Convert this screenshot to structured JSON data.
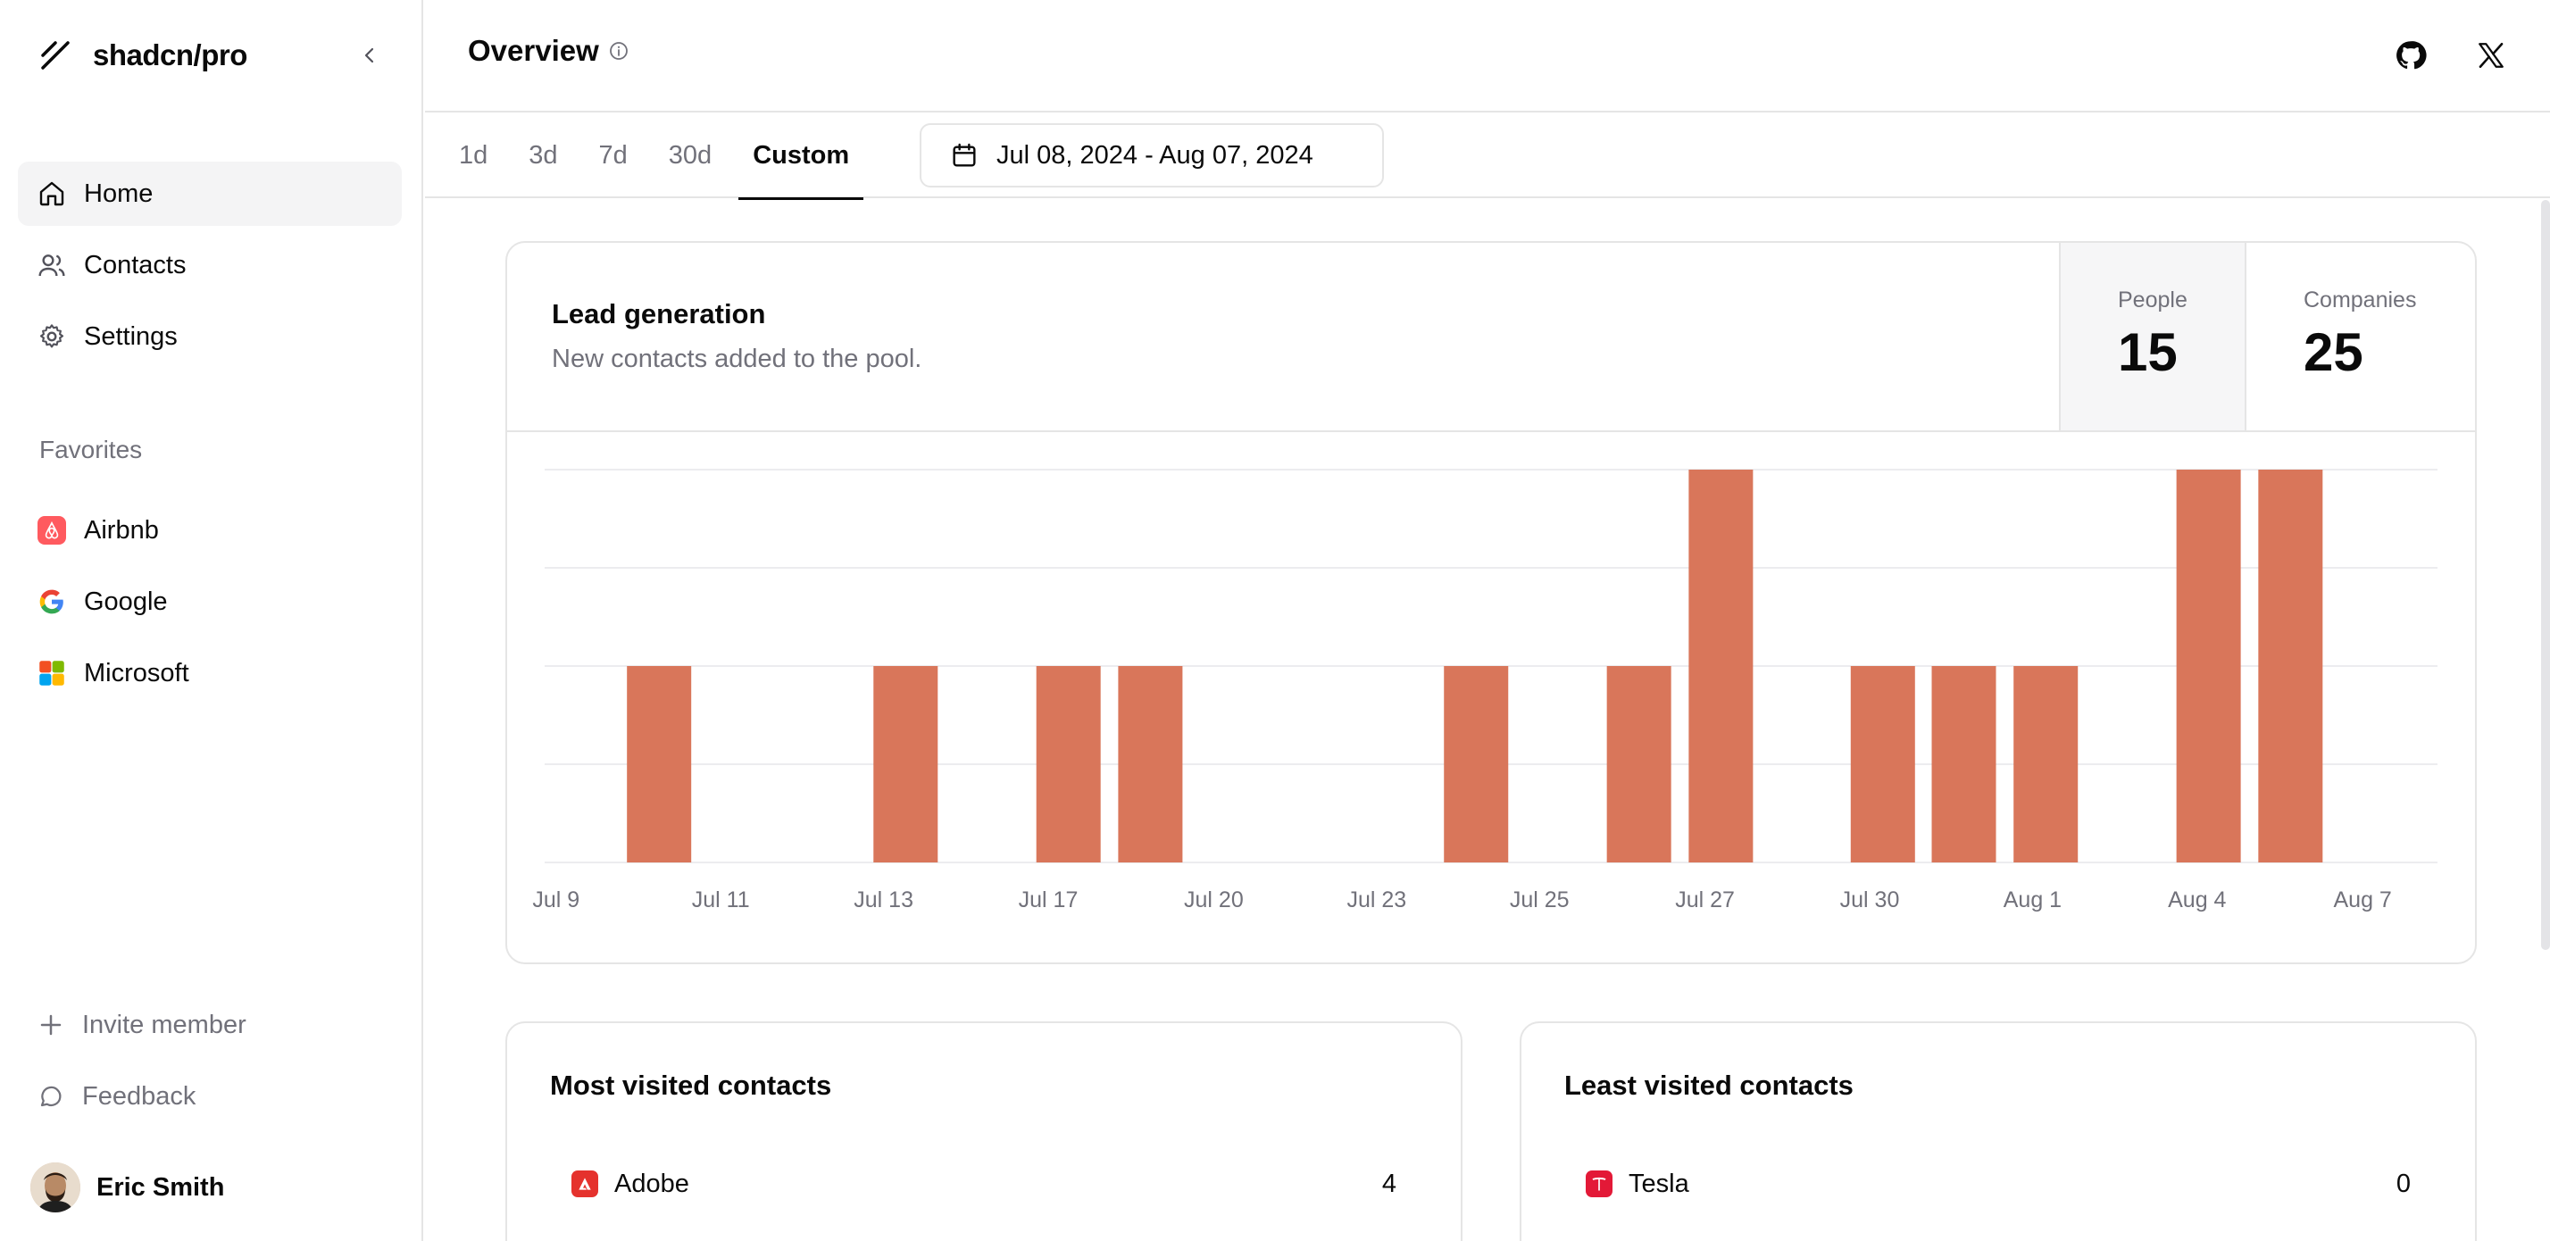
{
  "sidebar": {
    "brand": "shadcn/pro",
    "nav": [
      {
        "label": "Home",
        "icon": "home-icon",
        "active": true
      },
      {
        "label": "Contacts",
        "icon": "users-icon",
        "active": false
      },
      {
        "label": "Settings",
        "icon": "gear-icon",
        "active": false
      }
    ],
    "favorites_label": "Favorites",
    "favorites": [
      {
        "label": "Airbnb",
        "icon": "airbnb-logo"
      },
      {
        "label": "Google",
        "icon": "google-logo"
      },
      {
        "label": "Microsoft",
        "icon": "microsoft-logo"
      }
    ],
    "invite_label": "Invite member",
    "feedback_label": "Feedback",
    "user_name": "Eric Smith"
  },
  "header": {
    "title": "Overview"
  },
  "tabs": [
    {
      "label": "1d",
      "active": false
    },
    {
      "label": "3d",
      "active": false
    },
    {
      "label": "7d",
      "active": false
    },
    {
      "label": "30d",
      "active": false
    },
    {
      "label": "Custom",
      "active": true
    }
  ],
  "date_range": "Jul 08, 2024 - Aug 07, 2024",
  "lead": {
    "title": "Lead generation",
    "subtitle": "New contacts added to the pool.",
    "people_label": "People",
    "people_value": "15",
    "companies_label": "Companies",
    "companies_value": "25"
  },
  "chart_data": {
    "type": "bar",
    "title": "",
    "xlabel": "",
    "ylabel": "",
    "ylim": [
      0,
      2
    ],
    "grid": true,
    "color": "#d9765a",
    "categories": [
      "Jul 9",
      "Jul 10",
      "Jul 11",
      "Jul 12",
      "Jul 13",
      "Jul 14",
      "Jul 17",
      "Jul 18",
      "Jul 20",
      "Jul 21",
      "Jul 23",
      "Jul 24",
      "Jul 25",
      "Jul 26",
      "Jul 27",
      "Jul 28",
      "Jul 30",
      "Jul 31",
      "Aug 1",
      "Aug 2",
      "Aug 4",
      "Aug 5",
      "Aug 7"
    ],
    "values": [
      0,
      1,
      0,
      0,
      1,
      0,
      1,
      1,
      0,
      0,
      0,
      1,
      0,
      1,
      2,
      0,
      1,
      1,
      1,
      0,
      2,
      2,
      0
    ],
    "tick_labels": [
      "Jul 9",
      "Jul 11",
      "Jul 13",
      "Jul 17",
      "Jul 20",
      "Jul 23",
      "Jul 25",
      "Jul 27",
      "Jul 30",
      "Aug 1",
      "Aug 4",
      "Aug 7"
    ]
  },
  "most_visited": {
    "title": "Most visited contacts",
    "rows": [
      {
        "name": "Adobe",
        "count": "4",
        "color": "#e5322d"
      }
    ]
  },
  "least_visited": {
    "title": "Least visited contacts",
    "rows": [
      {
        "name": "Tesla",
        "count": "0",
        "color": "#e31937"
      }
    ]
  }
}
